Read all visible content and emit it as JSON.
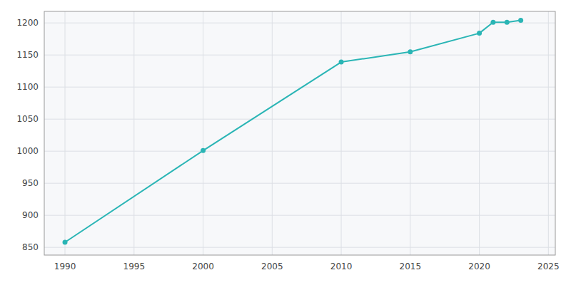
{
  "chart_data": {
    "type": "line",
    "x": [
      1990,
      2000,
      2010,
      2015,
      2020,
      2021,
      2022,
      2023
    ],
    "values": [
      858,
      1001,
      1139,
      1155,
      1184,
      1201,
      1201,
      1204
    ],
    "color": "#2ab5b5",
    "marker": "circle",
    "xlim": [
      1988.5,
      2025.5
    ],
    "ylim": [
      838,
      1218
    ],
    "xticks": [
      1990,
      1995,
      2000,
      2005,
      2010,
      2015,
      2020,
      2025
    ],
    "yticks": [
      850,
      900,
      950,
      1000,
      1050,
      1100,
      1150,
      1200
    ],
    "grid": true
  }
}
